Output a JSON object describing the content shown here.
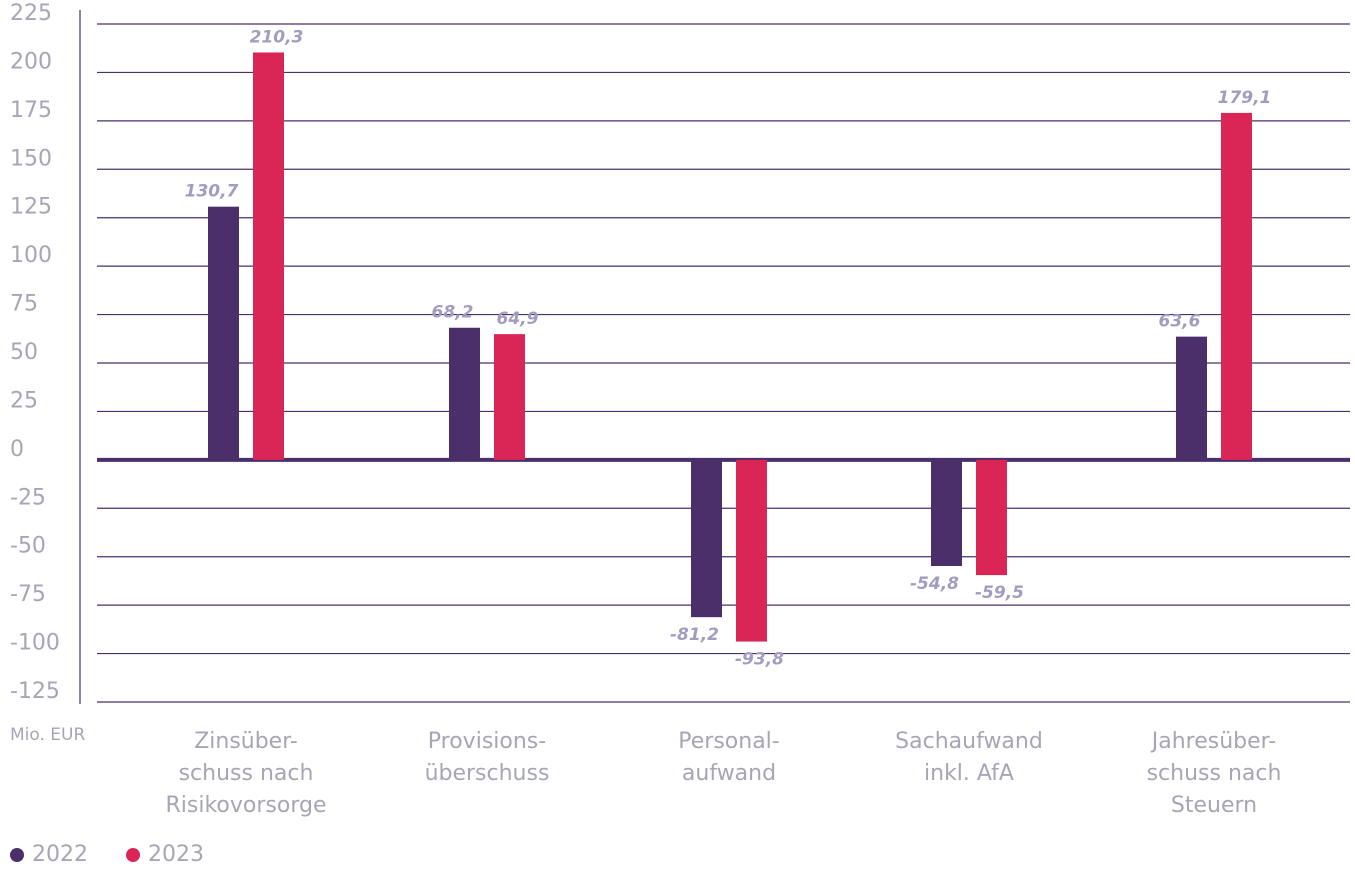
{
  "chart_data": {
    "type": "bar",
    "categories": [
      [
        "Zinsüber-",
        "schuss nach",
        "Risikovorsorge"
      ],
      [
        "Provisions-",
        "überschuss"
      ],
      [
        "Personal-",
        "aufwand"
      ],
      [
        "Sachaufwand",
        "inkl. AfA"
      ],
      [
        "Jahresüber-",
        "schuss nach",
        "Steuern"
      ]
    ],
    "series": [
      {
        "name": "2022",
        "color": "#4a2f6b",
        "values": [
          130.7,
          68.2,
          -81.2,
          -54.8,
          63.6
        ],
        "labels": [
          "130,7",
          "68,2",
          "-81,2",
          "-54,8",
          "63,6"
        ]
      },
      {
        "name": "2023",
        "color": "#d92657",
        "values": [
          210.3,
          64.9,
          -93.8,
          -59.5,
          179.1
        ],
        "labels": [
          "210,3",
          "64,9",
          "-93,8",
          "-59,5",
          "179,1"
        ]
      }
    ],
    "ylim": [
      -125,
      225
    ],
    "yticks": [
      225,
      200,
      175,
      150,
      125,
      100,
      75,
      50,
      25,
      0,
      -25,
      -50,
      -75,
      -100,
      -125
    ],
    "unit_label": "Mio. EUR",
    "grid": true,
    "legend_position": "bottom-left"
  }
}
